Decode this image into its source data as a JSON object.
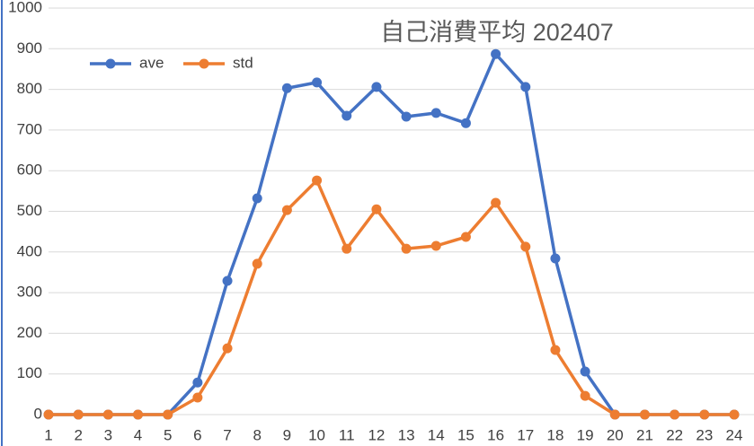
{
  "chart_data": {
    "type": "line",
    "title": "自己消費平均  202407",
    "categories": [
      "1",
      "2",
      "3",
      "4",
      "5",
      "6",
      "7",
      "8",
      "9",
      "10",
      "11",
      "12",
      "13",
      "14",
      "15",
      "16",
      "17",
      "18",
      "19",
      "20",
      "21",
      "22",
      "23",
      "24"
    ],
    "series": [
      {
        "name": "ave",
        "color": "#4472c4",
        "values": [
          0,
          0,
          0,
          0,
          0,
          79,
          329,
          532,
          803,
          817,
          735,
          806,
          733,
          742,
          717,
          887,
          806,
          384,
          106,
          0,
          0,
          0,
          0,
          0
        ]
      },
      {
        "name": "std",
        "color": "#ed7d31",
        "values": [
          0,
          0,
          0,
          0,
          0,
          42,
          163,
          371,
          503,
          576,
          408,
          505,
          408,
          415,
          437,
          521,
          413,
          159,
          46,
          0,
          0,
          0,
          0,
          0
        ]
      }
    ],
    "ylim": [
      0,
      1000
    ],
    "yticks": [
      0,
      100,
      200,
      300,
      400,
      500,
      600,
      700,
      800,
      900,
      1000
    ],
    "grid": true,
    "legend": "upper left"
  }
}
